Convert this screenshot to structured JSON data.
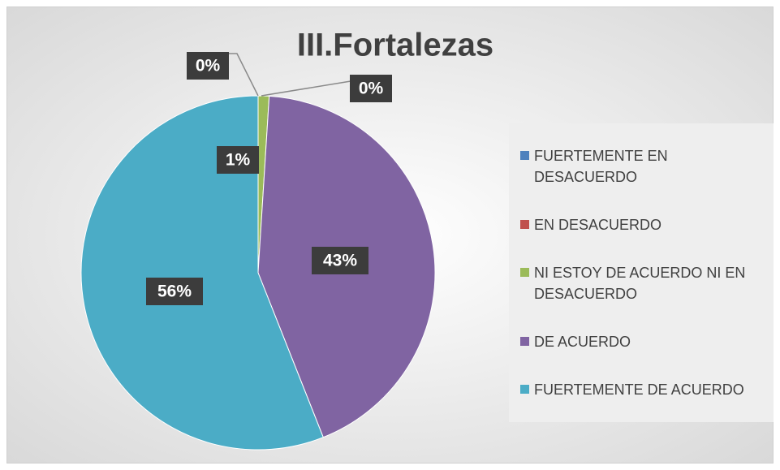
{
  "chart_data": {
    "type": "pie",
    "title": "III.Fortalezas",
    "categories": [
      "FUERTEMENTE EN DESACUERDO",
      "EN DESACUERDO",
      "NI ESTOY DE ACUERDO NI EN DESACUERDO",
      "DE ACUERDO",
      "FUERTEMENTE DE ACUERDO"
    ],
    "values": [
      0,
      0,
      1,
      43,
      56
    ],
    "value_labels": [
      "0%",
      "0%",
      "1%",
      "43%",
      "56%"
    ],
    "colors": [
      "#4f81bd",
      "#c0504d",
      "#9bbb59",
      "#8064a2",
      "#4bacc6"
    ],
    "legend": "right"
  }
}
